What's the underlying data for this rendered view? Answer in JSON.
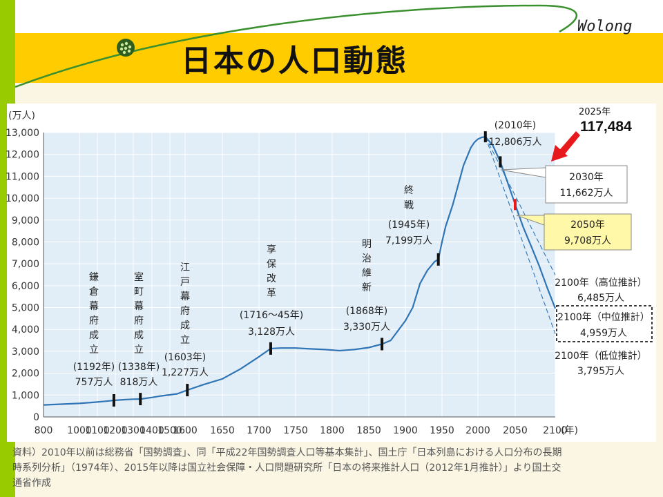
{
  "slide": {
    "title": "日本の人口動態",
    "brand": "Wolong",
    "note_year": "2025年",
    "note_value": "117,484",
    "colors": {
      "accent_band": "#ffcc00",
      "side_bar": "#99cc00",
      "line": "#2f74b5",
      "arrow": "#e8191c"
    }
  },
  "chart_data": {
    "type": "line",
    "title": "",
    "xlabel": "(年)",
    "ylabel": "(万人)",
    "xlim": [
      800,
      2100
    ],
    "ylim": [
      0,
      13000
    ],
    "x_ticks": [
      "800",
      "1000",
      "1100",
      "1200",
      "1300",
      "1400",
      "1500",
      "1600",
      "1650",
      "1700",
      "1750",
      "1800",
      "1850",
      "1900",
      "1950",
      "2000",
      "2050",
      "2100"
    ],
    "y_ticks": [
      "0",
      "1,000",
      "2,000",
      "3,000",
      "4,000",
      "5,000",
      "6,000",
      "7,000",
      "8,000",
      "9,000",
      "10,000",
      "11,000",
      "12,000",
      "13,000"
    ],
    "series": [
      {
        "style": "solid",
        "x": [
          800,
          1000,
          1100,
          1150,
          1192,
          1250,
          1300,
          1338,
          1400,
          1450,
          1500,
          1550,
          1603,
          1625,
          1650,
          1675,
          1700,
          1716,
          1730,
          1750,
          1770,
          1790,
          1810,
          1830,
          1850,
          1868,
          1880,
          1900,
          1910,
          1920,
          1930,
          1940,
          1945,
          1950,
          1955,
          1960,
          1965,
          1970,
          1975,
          1980,
          1985,
          1990,
          1995,
          2000,
          2005,
          2010,
          2020,
          2030,
          2040,
          2050,
          2060,
          2070,
          2080,
          2090,
          2100
        ],
        "y": [
          550,
          620,
          680,
          720,
          757,
          790,
          810,
          818,
          890,
          960,
          1010,
          1060,
          1227,
          1480,
          1740,
          2200,
          2750,
          3128,
          3150,
          3150,
          3110,
          3080,
          3030,
          3080,
          3170,
          3330,
          3500,
          4400,
          5000,
          6100,
          6700,
          7100,
          7199,
          8000,
          8700,
          9200,
          9700,
          10300,
          10900,
          11500,
          11900,
          12300,
          12550,
          12700,
          12780,
          12806,
          12410,
          11662,
          10700,
          9708,
          8674,
          7800,
          6900,
          5900,
          4959
        ]
      },
      {
        "style": "dashed",
        "x": [
          2010,
          2100
        ],
        "y": [
          12806,
          6485
        ]
      },
      {
        "style": "dashed",
        "x": [
          2010,
          2100
        ],
        "y": [
          12806,
          3795
        ]
      }
    ],
    "annotations": [
      {
        "id": "kamakura",
        "label": "鎌倉幕府成立",
        "year": "(1192年)",
        "value": "757万人",
        "x": 1192,
        "y": 757
      },
      {
        "id": "muromachi",
        "label": "室町幕府成立",
        "year": "(1338年)",
        "value": "818万人",
        "x": 1338,
        "y": 818
      },
      {
        "id": "edo",
        "label": "江戸幕府成立",
        "year": "(1603年)",
        "value": "1,227万人",
        "x": 1603,
        "y": 1227
      },
      {
        "id": "kyoho",
        "label": "享保改革",
        "year": "(1716～45年)",
        "value": "3,128万人",
        "x": 1716,
        "y": 3128
      },
      {
        "id": "meiji",
        "label": "明治維新",
        "year": "(1868年)",
        "value": "3,330万人",
        "x": 1868,
        "y": 3330
      },
      {
        "id": "shusen",
        "label": "終戦",
        "year": "(1945年)",
        "value": "7,199万人",
        "x": 1945,
        "y": 7199
      },
      {
        "id": "y2010",
        "year": "(2010年)",
        "value": "12,806万人",
        "x": 2010,
        "y": 12806
      },
      {
        "id": "y2030",
        "year": "2030年",
        "value": "11,662万人",
        "x": 2030,
        "y": 11662
      },
      {
        "id": "y2050",
        "year": "2050年",
        "value": "9,708万人",
        "x": 2050,
        "y": 9708
      },
      {
        "id": "high",
        "year": "2100年（高位推計）",
        "value": "6,485万人",
        "x": 2100,
        "y": 6485
      },
      {
        "id": "mid",
        "year": "2100年（中位推計）",
        "value": "4,959万人",
        "x": 2100,
        "y": 4959
      },
      {
        "id": "low",
        "year": "2100年（低位推計）",
        "value": "3,795万人",
        "x": 2100,
        "y": 3795
      }
    ],
    "source": "資料）2010年以前は総務省「国勢調査」、同「平成22年国勢調査人口等基本集計」、国土庁「日本列島における人口分布の長期時系列分析」（1974年）、2015年以降は国立社会保障・人口問題研究所「日本の将来推計人口（2012年1月推計）」より国土交通省作成"
  }
}
